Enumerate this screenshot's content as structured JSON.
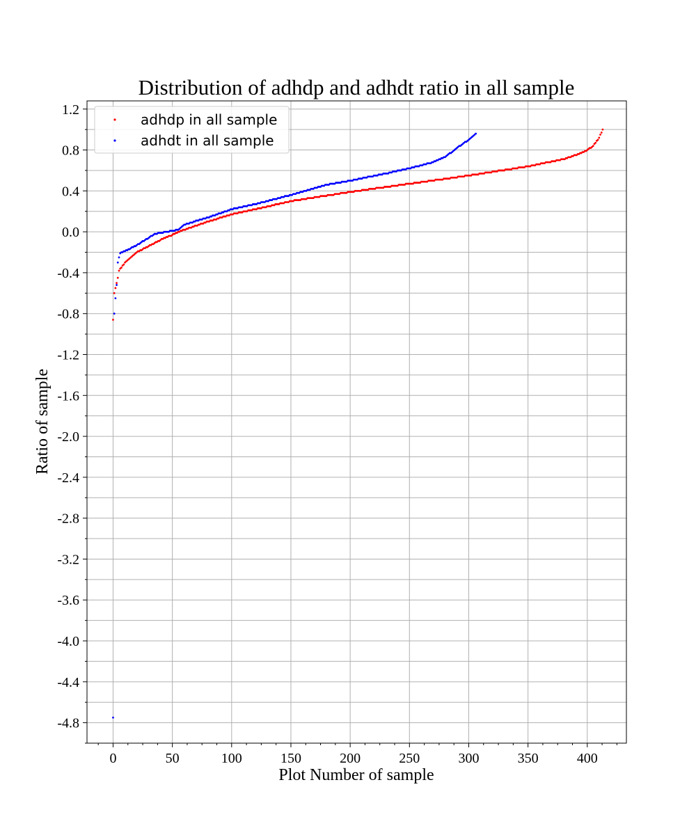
{
  "chart_data": {
    "type": "scatter",
    "title": "Distribution of adhdp and adhdt ratio in all sample",
    "xlabel": "Plot Number of sample",
    "ylabel": "Ratio of sample",
    "xlim": [
      -22,
      433
    ],
    "ylim": [
      -5.0,
      1.28
    ],
    "x_ticks": [
      0,
      50,
      100,
      150,
      200,
      250,
      300,
      350,
      400
    ],
    "x_tick_labels": [
      "0",
      "50",
      "100",
      "150",
      "200",
      "250",
      "300",
      "350",
      "400"
    ],
    "y_ticks": [
      1.2,
      0.8,
      0.4,
      0.0,
      -0.4,
      -0.8,
      -1.2,
      -1.6,
      -2.0,
      -2.4,
      -2.8,
      -3.2,
      -3.6,
      -4.0,
      -4.4,
      -4.8
    ],
    "y_tick_labels": [
      "1.2",
      "0.8",
      "0.4",
      "0.0",
      "-0.4",
      "-0.8",
      "-1.2",
      "-1.6",
      "-2.0",
      "-2.4",
      "-2.8",
      "-3.2",
      "-3.6",
      "-4.0",
      "-4.4",
      "-4.8"
    ],
    "grid": true,
    "legend_position": "top-left",
    "series": [
      {
        "name": "adhdp in all sample",
        "color": "#ff0000",
        "count": 414,
        "curve": [
          [
            0,
            -0.86
          ],
          [
            1,
            -0.6
          ],
          [
            2,
            -0.55
          ],
          [
            3,
            -0.5
          ],
          [
            4,
            -0.45
          ],
          [
            5,
            -0.38
          ],
          [
            7,
            -0.35
          ],
          [
            10,
            -0.3
          ],
          [
            15,
            -0.25
          ],
          [
            20,
            -0.2
          ],
          [
            30,
            -0.14
          ],
          [
            40,
            -0.08
          ],
          [
            50,
            -0.03
          ],
          [
            60,
            0.02
          ],
          [
            80,
            0.1
          ],
          [
            100,
            0.17
          ],
          [
            120,
            0.22
          ],
          [
            150,
            0.3
          ],
          [
            200,
            0.39
          ],
          [
            250,
            0.47
          ],
          [
            300,
            0.55
          ],
          [
            350,
            0.64
          ],
          [
            380,
            0.71
          ],
          [
            395,
            0.77
          ],
          [
            400,
            0.8
          ],
          [
            405,
            0.84
          ],
          [
            410,
            0.92
          ],
          [
            413,
            1.0
          ]
        ]
      },
      {
        "name": "adhdt in all sample",
        "color": "#0000ff",
        "count": 307,
        "curve": [
          [
            0,
            -4.75
          ],
          [
            1,
            -0.8
          ],
          [
            2,
            -0.65
          ],
          [
            3,
            -0.52
          ],
          [
            4,
            -0.3
          ],
          [
            6,
            -0.21
          ],
          [
            10,
            -0.19
          ],
          [
            20,
            -0.13
          ],
          [
            30,
            -0.06
          ],
          [
            35,
            -0.02
          ],
          [
            45,
            0.0
          ],
          [
            55,
            0.02
          ],
          [
            60,
            0.07
          ],
          [
            80,
            0.14
          ],
          [
            100,
            0.22
          ],
          [
            120,
            0.27
          ],
          [
            150,
            0.36
          ],
          [
            180,
            0.46
          ],
          [
            200,
            0.5
          ],
          [
            230,
            0.57
          ],
          [
            250,
            0.62
          ],
          [
            270,
            0.68
          ],
          [
            280,
            0.73
          ],
          [
            290,
            0.82
          ],
          [
            300,
            0.9
          ],
          [
            306,
            0.96
          ]
        ]
      }
    ]
  }
}
